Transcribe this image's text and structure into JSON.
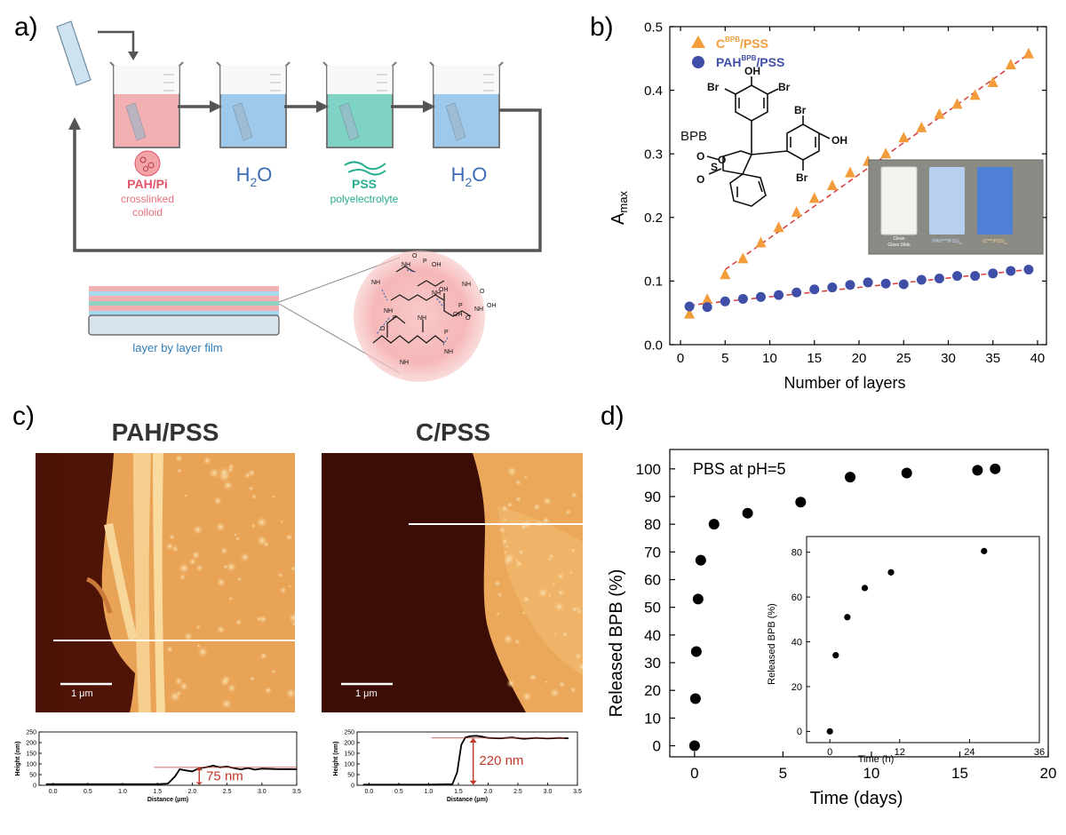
{
  "panel_labels": {
    "a": "a)",
    "b": "b)",
    "c": "c)",
    "d": "d)"
  },
  "panel_a": {
    "beakers": [
      {
        "label": "PAH/Pi",
        "sublabel1": "crosslinked",
        "sublabel2": "colloid",
        "color": "#f2b0b3"
      },
      {
        "label": "H",
        "sub": "2",
        "tail": "O",
        "color": "#9ec9ea"
      },
      {
        "label": "PSS",
        "sublabel1": "polyelectrolyte",
        "color": "#7fd3c4"
      },
      {
        "label": "H",
        "sub": "2",
        "tail": "O",
        "color": "#9ec9ea"
      }
    ],
    "film_label": "layer by layer film",
    "chem_labels": [
      "NH",
      "NH",
      "NH",
      "NH",
      "NH",
      "NH",
      "NH",
      "NH",
      "NH",
      "OH",
      "OH",
      "OH",
      "OH",
      "O",
      "O",
      "O",
      "O",
      "P",
      "P",
      "P",
      "P"
    ],
    "colors": {
      "pah": "#e8536a",
      "pss": "#27ae8f",
      "water": "#3d6db4",
      "circle": "#f7b9b9"
    }
  },
  "chart_b": {
    "type": "scatter",
    "xlabel": "Number of layers",
    "ylabel_main": "A",
    "ylabel_sub": "max",
    "xlim": [
      -1.2,
      41
    ],
    "ylim": [
      0,
      0.5
    ],
    "xticks": [
      0,
      5,
      10,
      15,
      20,
      25,
      30,
      35,
      40
    ],
    "yticks": [
      0.0,
      0.1,
      0.2,
      0.3,
      0.4,
      0.5
    ],
    "legend_position": "top-left",
    "series": [
      {
        "name_main": "C",
        "name_sup": "BPB",
        "name_tail": "/PSS",
        "marker": "triangle",
        "color": "#f39c3c",
        "x": [
          1,
          3,
          5,
          7,
          9,
          11,
          13,
          15,
          17,
          19,
          21,
          23,
          25,
          27,
          29,
          31,
          33,
          35,
          37,
          39
        ],
        "y": [
          0.048,
          0.071,
          0.11,
          0.135,
          0.16,
          0.184,
          0.208,
          0.23,
          0.25,
          0.27,
          0.288,
          0.3,
          0.325,
          0.341,
          0.362,
          0.378,
          0.392,
          0.412,
          0.44,
          0.457
        ]
      },
      {
        "name_main": "PAH",
        "name_sup": "BPB",
        "name_tail": "/PSS",
        "marker": "circle",
        "color": "#3f4fa8",
        "x": [
          1,
          3,
          5,
          7,
          9,
          11,
          13,
          15,
          17,
          19,
          21,
          23,
          25,
          27,
          29,
          31,
          33,
          35,
          37,
          39
        ],
        "y": [
          0.06,
          0.059,
          0.068,
          0.072,
          0.075,
          0.078,
          0.082,
          0.087,
          0.09,
          0.094,
          0.098,
          0.096,
          0.095,
          0.102,
          0.104,
          0.108,
          0.108,
          0.112,
          0.116,
          0.118
        ]
      }
    ],
    "fit_lines": [
      {
        "x": [
          5,
          39
        ],
        "y": [
          0.118,
          0.457
        ],
        "color": "#d64545"
      },
      {
        "x": [
          1,
          39
        ],
        "y": [
          0.062,
          0.118
        ],
        "color": "#d64545"
      }
    ],
    "molecule": {
      "name": "BPB",
      "atoms": [
        "OH",
        "Br",
        "Br",
        "Br",
        "OH",
        "Br",
        "O",
        "O",
        "S",
        "O"
      ]
    },
    "inset_photo": {
      "labels": [
        "Clean",
        "Glass Slide",
        "(PAH",
        "BPB",
        "/PSS)",
        "20",
        "(C",
        "BPB",
        "/PSS)",
        "20"
      ]
    }
  },
  "panel_c": {
    "titles": [
      "PAH/PSS",
      "C/PSS"
    ],
    "scalebar": "1 μm",
    "profiles": [
      {
        "ylabel": "Height (nm)",
        "xlabel": "Distance (μm)",
        "annotation": "75 nm",
        "yticks": [
          0,
          50,
          100,
          150,
          200,
          250
        ],
        "xticks": [
          0.0,
          0.5,
          1.0,
          1.5,
          2.0,
          2.5,
          3.0,
          3.5
        ],
        "xlim": [
          -0.2,
          3.5
        ],
        "ylim": [
          0,
          250
        ],
        "x": [
          -0.1,
          0.5,
          1.0,
          1.5,
          1.65,
          1.75,
          1.82,
          1.9,
          2.0,
          2.1,
          2.2,
          2.3,
          2.4,
          2.5,
          2.6,
          2.7,
          2.8,
          2.9,
          3.0,
          3.2,
          3.5
        ],
        "y": [
          5,
          5,
          5,
          5,
          8,
          40,
          75,
          70,
          65,
          80,
          84,
          92,
          84,
          88,
          80,
          74,
          81,
          73,
          78,
          76,
          75
        ]
      },
      {
        "ylabel": "Height (nm)",
        "xlabel": "Distance (μm)",
        "annotation": "220 nm",
        "yticks": [
          0,
          50,
          100,
          150,
          200,
          250
        ],
        "xticks": [
          0.0,
          0.5,
          1.0,
          1.5,
          2.0,
          2.5,
          3.0,
          3.5
        ],
        "xlim": [
          -0.2,
          3.5
        ],
        "ylim": [
          0,
          250
        ],
        "x": [
          -0.1,
          0.5,
          1.0,
          1.4,
          1.48,
          1.55,
          1.62,
          1.7,
          1.8,
          1.9,
          2.0,
          2.2,
          2.4,
          2.6,
          2.8,
          3.0,
          3.2,
          3.35
        ],
        "y": [
          3,
          3,
          3,
          5,
          60,
          190,
          225,
          230,
          232,
          228,
          222,
          220,
          224,
          218,
          222,
          219,
          222,
          220
        ]
      }
    ]
  },
  "chart_d": {
    "type": "scatter",
    "annotation": "PBS at pH=5",
    "xlabel": "Time (days)",
    "ylabel": "Released BPB (%)",
    "xlim": [
      -1.4,
      20
    ],
    "ylim": [
      -4,
      107
    ],
    "xticks": [
      0,
      5,
      10,
      15,
      20
    ],
    "yticks": [
      0,
      10,
      20,
      30,
      40,
      50,
      60,
      70,
      80,
      90,
      100
    ],
    "x": [
      0.0,
      0.05,
      0.1,
      0.2,
      0.35,
      1.1,
      3.0,
      6.0,
      8.8,
      12.0,
      16.0,
      17.0
    ],
    "y": [
      0,
      17,
      34,
      53,
      67,
      80,
      84,
      88,
      97,
      98.5,
      99.5,
      100
    ],
    "inset": {
      "xlabel": "Time (h)",
      "ylabel": "Released BPB (%)",
      "xlim": [
        -4,
        36
      ],
      "ylim": [
        -5,
        87
      ],
      "xticks": [
        0,
        12,
        24,
        36
      ],
      "yticks": [
        0,
        20,
        40,
        60,
        80
      ],
      "x": [
        0,
        1,
        3,
        6,
        10.5,
        26.5
      ],
      "y": [
        0,
        34,
        51,
        64,
        71,
        80.5
      ]
    }
  }
}
